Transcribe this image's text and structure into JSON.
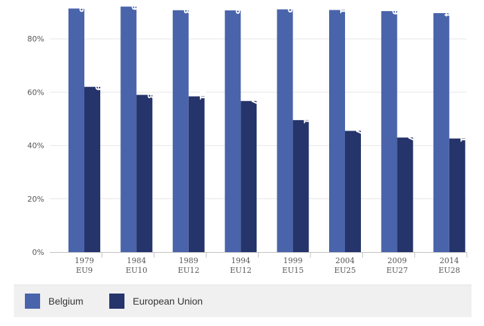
{
  "chart_data": {
    "type": "bar",
    "categories": [
      {
        "year": "1979",
        "eu": "EU9"
      },
      {
        "year": "1984",
        "eu": "EU10"
      },
      {
        "year": "1989",
        "eu": "EU12"
      },
      {
        "year": "1994",
        "eu": "EU12"
      },
      {
        "year": "1999",
        "eu": "EU15"
      },
      {
        "year": "2004",
        "eu": "EU25"
      },
      {
        "year": "2009",
        "eu": "EU27"
      },
      {
        "year": "2014",
        "eu": "EU28"
      }
    ],
    "series": [
      {
        "name": "Belgium",
        "color": "#4a64ab",
        "values": [
          91.36,
          92.09,
          90.73,
          90.66,
          91.05,
          90.81,
          90.39,
          89.64
        ],
        "labels": [
          "91.36",
          "92.09",
          "90.73",
          "90.66",
          "91.05",
          "90.81",
          "90.39",
          "89.64"
        ]
      },
      {
        "name": "European Union",
        "color": "#25346a",
        "values": [
          61.99,
          58.98,
          58.41,
          56.67,
          49.51,
          45.47,
          42.97,
          42.61
        ],
        "labels": [
          "61.99",
          "58.98",
          "58.41",
          "56.67",
          "49.51",
          "45.47",
          "42.97",
          "42.61"
        ]
      }
    ],
    "ylim": [
      0,
      100
    ],
    "yticks": [
      0,
      20,
      40,
      60,
      80
    ],
    "ytick_labels": [
      "0%",
      "20%",
      "40%",
      "60%",
      "80%"
    ],
    "grid": true,
    "legend_position": "bottom"
  },
  "legend": {
    "items": [
      {
        "label": "Belgium",
        "color": "#4a64ab"
      },
      {
        "label": "European Union",
        "color": "#25346a"
      }
    ]
  }
}
